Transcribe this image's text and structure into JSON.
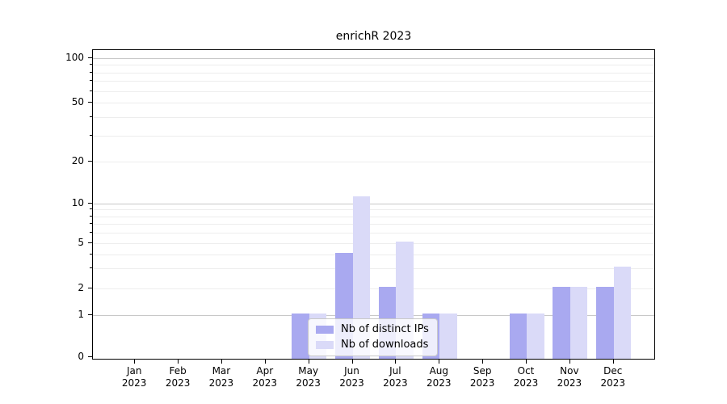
{
  "chart_data": {
    "type": "bar",
    "title": "enrichR 2023",
    "categories": [
      "Jan 2023",
      "Feb 2023",
      "Mar 2023",
      "Apr 2023",
      "May 2023",
      "Jun 2023",
      "Jul 2023",
      "Aug 2023",
      "Sep 2023",
      "Oct 2023",
      "Nov 2023",
      "Dec 2023"
    ],
    "category_months": [
      "Jan",
      "Feb",
      "Mar",
      "Apr",
      "May",
      "Jun",
      "Jul",
      "Aug",
      "Sep",
      "Oct",
      "Nov",
      "Dec"
    ],
    "category_year": "2023",
    "series": [
      {
        "name": "Nb of distinct IPs",
        "color": "#a9a9f0",
        "values": [
          0,
          0,
          0,
          0,
          1,
          4,
          2,
          1,
          0,
          1,
          2,
          2
        ]
      },
      {
        "name": "Nb of downloads",
        "color": "#dadaf8",
        "values": [
          0,
          0,
          0,
          0,
          1,
          11,
          5,
          1,
          0,
          1,
          2,
          3
        ]
      }
    ],
    "xlabel": "",
    "ylabel": "",
    "y_axis": {
      "scale": "symlog",
      "ticks": [
        0,
        1,
        2,
        5,
        10,
        20,
        50,
        100
      ],
      "major_grid_values": [
        1,
        10,
        100
      ],
      "range": [
        0,
        110
      ]
    },
    "grid": true,
    "legend_position": "lower center"
  }
}
